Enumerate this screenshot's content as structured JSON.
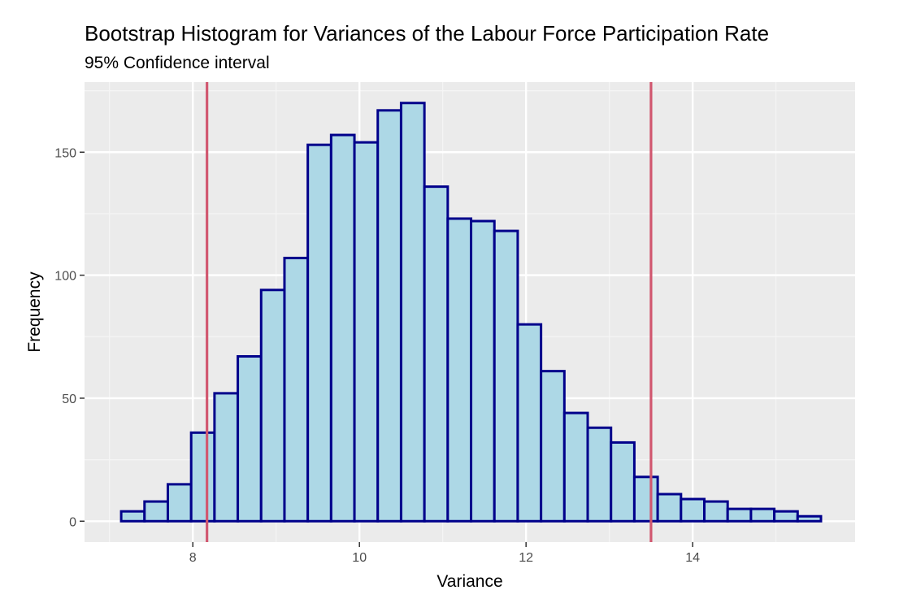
{
  "chart_data": {
    "type": "bar",
    "subtype": "histogram",
    "title": "Bootstrap Histogram for Variances of the Labour Force Participation Rate",
    "subtitle": "95% Confidence interval",
    "xlabel": "Variance",
    "ylabel": "Frequency",
    "xlim": [
      6.7,
      15.95
    ],
    "ylim": [
      -8.5,
      178.5
    ],
    "x_ticks": [
      8,
      10,
      12,
      14
    ],
    "y_ticks": [
      0,
      50,
      100,
      150
    ],
    "grid": true,
    "legend": "none",
    "bins": [
      {
        "x0": 7.14,
        "x1": 7.42,
        "count": 4
      },
      {
        "x0": 7.42,
        "x1": 7.7,
        "count": 8
      },
      {
        "x0": 7.7,
        "x1": 7.98,
        "count": 15
      },
      {
        "x0": 7.98,
        "x1": 8.26,
        "count": 36
      },
      {
        "x0": 8.26,
        "x1": 8.54,
        "count": 52
      },
      {
        "x0": 8.54,
        "x1": 8.82,
        "count": 67
      },
      {
        "x0": 8.82,
        "x1": 9.1,
        "count": 94
      },
      {
        "x0": 9.1,
        "x1": 9.38,
        "count": 107
      },
      {
        "x0": 9.38,
        "x1": 9.66,
        "count": 153
      },
      {
        "x0": 9.66,
        "x1": 9.94,
        "count": 157
      },
      {
        "x0": 9.94,
        "x1": 10.22,
        "count": 154
      },
      {
        "x0": 10.22,
        "x1": 10.5,
        "count": 167
      },
      {
        "x0": 10.5,
        "x1": 10.78,
        "count": 170
      },
      {
        "x0": 10.78,
        "x1": 11.06,
        "count": 136
      },
      {
        "x0": 11.06,
        "x1": 11.34,
        "count": 123
      },
      {
        "x0": 11.34,
        "x1": 11.62,
        "count": 122
      },
      {
        "x0": 11.62,
        "x1": 11.9,
        "count": 118
      },
      {
        "x0": 11.9,
        "x1": 12.18,
        "count": 80
      },
      {
        "x0": 12.18,
        "x1": 12.46,
        "count": 61
      },
      {
        "x0": 12.46,
        "x1": 12.74,
        "count": 44
      },
      {
        "x0": 12.74,
        "x1": 13.02,
        "count": 38
      },
      {
        "x0": 13.02,
        "x1": 13.3,
        "count": 32
      },
      {
        "x0": 13.3,
        "x1": 13.58,
        "count": 18
      },
      {
        "x0": 13.58,
        "x1": 13.86,
        "count": 11
      },
      {
        "x0": 13.86,
        "x1": 14.14,
        "count": 9
      },
      {
        "x0": 14.14,
        "x1": 14.42,
        "count": 8
      },
      {
        "x0": 14.42,
        "x1": 14.7,
        "count": 5
      },
      {
        "x0": 14.7,
        "x1": 14.98,
        "count": 5
      },
      {
        "x0": 14.98,
        "x1": 15.26,
        "count": 4
      },
      {
        "x0": 15.26,
        "x1": 15.54,
        "count": 2
      }
    ],
    "confidence_interval": {
      "lower": 8.17,
      "upper": 13.5
    },
    "colors": {
      "bar_fill": "#add8e6",
      "bar_outline": "#00008b",
      "ci_line": "#d1576f",
      "panel_background": "#ebebeb",
      "grid_major": "#ffffff",
      "grid_minor": "#f5f5f5",
      "tick_label": "#4d4d4d",
      "tick_mark": "#333333"
    }
  }
}
